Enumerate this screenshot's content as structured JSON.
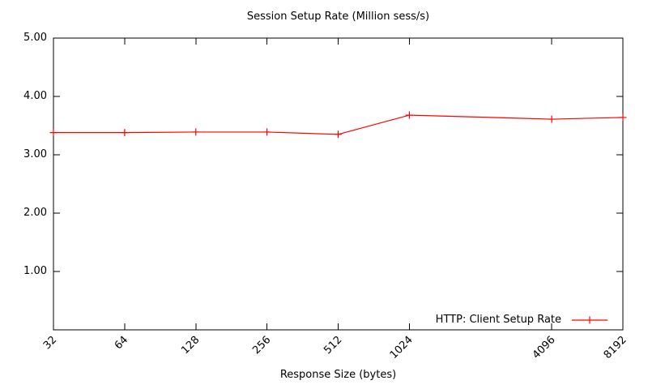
{
  "window": {
    "background_color": "#ffffff",
    "text_color": "#000000",
    "axis_color": "#000000"
  },
  "chart_data": {
    "type": "line",
    "title": "Session Setup Rate (Million sess/s)",
    "xlabel": "Response Size (bytes)",
    "ylabel": "",
    "x": [
      32,
      64,
      128,
      256,
      512,
      1024,
      4096,
      8192
    ],
    "x_tick_labels": [
      "32",
      "64",
      "128",
      "256",
      "512",
      "1024",
      "4096",
      "8192"
    ],
    "x_scale": "log2",
    "xlim": [
      32,
      8192
    ],
    "ylim": [
      0,
      5
    ],
    "y_tick_values": [
      1,
      2,
      3,
      4,
      5
    ],
    "y_tick_labels": [
      "1.00",
      "2.00",
      "3.00",
      "4.00",
      "5.00"
    ],
    "grid": false,
    "legend_position": "inside-bottom-right",
    "series": [
      {
        "name": "HTTP: Client Setup Rate",
        "color": "#ff0000",
        "marker": "plus",
        "values": [
          3.38,
          3.38,
          3.39,
          3.39,
          3.35,
          3.68,
          3.61,
          3.64
        ]
      }
    ]
  }
}
